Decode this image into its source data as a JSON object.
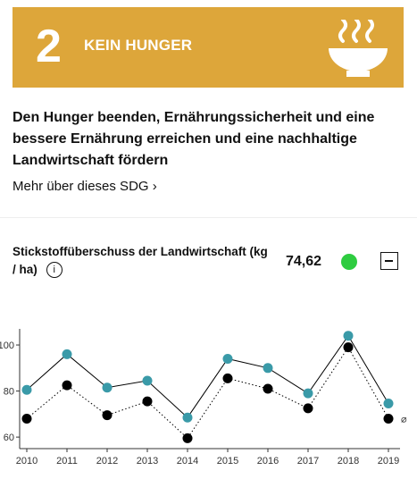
{
  "sdg": {
    "number": "2",
    "title": "KEIN HUNGER",
    "icon": "soup-bowl-icon",
    "color": "#dda63a"
  },
  "description": "Den Hunger beenden, Ernährungssicherheit und eine bessere Ernährung erreichen und eine nachhaltige Landwirtschaft fördern",
  "more_link": "Mehr über dieses SDG ›",
  "indicator": {
    "title": "Stickstoffüberschuss der Landwirtschaft (kg / ha)",
    "info_icon": "i",
    "value": "74,62",
    "status_color": "#2ecc40"
  },
  "chart_data": {
    "type": "line",
    "categories": [
      "2010",
      "2011",
      "2012",
      "2013",
      "2014",
      "2015",
      "2016",
      "2017",
      "2018",
      "2019"
    ],
    "series": [
      {
        "values": [
          80.5,
          96.0,
          81.5,
          84.5,
          68.5,
          94.0,
          90.0,
          79.0,
          104.0,
          74.6
        ],
        "color": "#3a9aa8",
        "line": "solid"
      },
      {
        "values": [
          68.0,
          82.5,
          69.5,
          75.5,
          59.5,
          85.5,
          81.0,
          72.5,
          99.0,
          68.0
        ],
        "color": "#000000",
        "line": "dotted"
      }
    ],
    "yticks": [
      60,
      80,
      100
    ],
    "ylim": [
      55,
      107
    ],
    "average_symbol": "⌀",
    "grid": false
  }
}
